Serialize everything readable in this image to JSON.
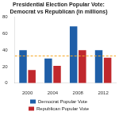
{
  "chart_data": {
    "type": "bar",
    "title": "Presidential Election Popular Vote: Democrat vs Republican (in millions)",
    "categories": [
      "2000",
      "2004",
      "2008",
      "2012"
    ],
    "series": [
      {
        "name": "Democrat Popular Vote",
        "color": "#1f5fa8",
        "values": [
          40,
          30,
          69,
          40
        ]
      },
      {
        "name": "Republican Popular Vote",
        "color": "#c0282d",
        "values": [
          16,
          21,
          40,
          31
        ]
      }
    ],
    "average_line": {
      "value": 33,
      "color": "#f5a623",
      "line_style": "dashed"
    },
    "ylim": [
      0,
      80
    ],
    "yticks": [
      0,
      20,
      40,
      60,
      80
    ],
    "grid": false,
    "legend": "bottom"
  }
}
